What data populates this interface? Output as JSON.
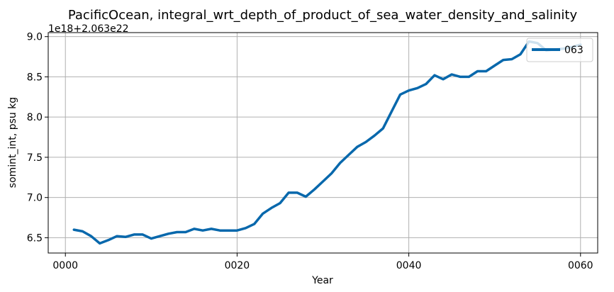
{
  "chart_data": {
    "type": "line",
    "title": "PacificOcean, integral_wrt_depth_of_product_of_sea_water_density_and_salinity",
    "xlabel": "Year",
    "ylabel": "somint_int, psu kg",
    "offset_label": "1e18+2.063e22",
    "xlim": [
      -2,
      62
    ],
    "ylim": [
      6.31,
      9.05
    ],
    "xticks": [
      0,
      20,
      40,
      60
    ],
    "xtick_labels": [
      "0000",
      "0020",
      "0040",
      "0060"
    ],
    "yticks": [
      6.5,
      7.0,
      7.5,
      8.0,
      8.5,
      9.0
    ],
    "ytick_labels": [
      "6.5",
      "7.0",
      "7.5",
      "8.0",
      "8.5",
      "9.0"
    ],
    "grid": true,
    "legend_position": "top-right",
    "series": [
      {
        "name": "063",
        "color": "#0868ac",
        "x": [
          1,
          2,
          3,
          4,
          5,
          6,
          7,
          8,
          9,
          10,
          11,
          12,
          13,
          14,
          15,
          16,
          17,
          18,
          19,
          20,
          21,
          22,
          23,
          24,
          25,
          26,
          27,
          28,
          29,
          30,
          31,
          32,
          33,
          34,
          35,
          36,
          37,
          38,
          39,
          40,
          41,
          42,
          43,
          44,
          45,
          46,
          47,
          48,
          49,
          50,
          51,
          52,
          53,
          54,
          55,
          56,
          57,
          58,
          59,
          60
        ],
        "y": [
          6.6,
          6.58,
          6.52,
          6.43,
          6.47,
          6.52,
          6.51,
          6.54,
          6.54,
          6.49,
          6.52,
          6.55,
          6.57,
          6.57,
          6.61,
          6.59,
          6.61,
          6.59,
          6.59,
          6.59,
          6.62,
          6.67,
          6.8,
          6.87,
          6.93,
          7.06,
          7.06,
          7.01,
          7.1,
          7.2,
          7.3,
          7.43,
          7.53,
          7.63,
          7.69,
          7.77,
          7.86,
          8.07,
          8.28,
          8.33,
          8.36,
          8.41,
          8.52,
          8.47,
          8.53,
          8.5,
          8.5,
          8.57,
          8.57,
          8.64,
          8.71,
          8.72,
          8.78,
          8.94,
          8.92,
          8.83,
          8.84,
          8.85,
          8.87,
          8.9
        ]
      }
    ]
  }
}
